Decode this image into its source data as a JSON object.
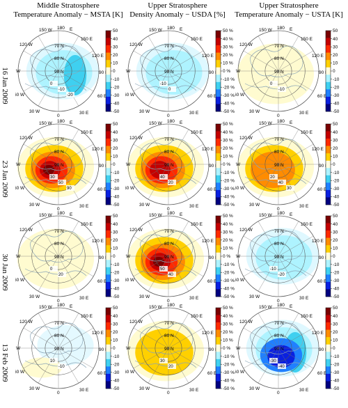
{
  "columns": [
    {
      "line1": "Middle Stratosphere",
      "line2": "Temperature Anomaly − MSTA [K]"
    },
    {
      "line1": "Upper Stratosphere",
      "line2": "Density Anomaly − USDA [%]"
    },
    {
      "line1": "Upper Stratosphere",
      "line2": "Temperature Anomaly − USTA [K]"
    }
  ],
  "rows": [
    "16 Jan 2009",
    "23 Jan 2009",
    "30 Jan 2009",
    "13 Feb 2009"
  ],
  "colorbar": {
    "kelvin_ticks": [
      "50",
      "40",
      "30",
      "20",
      "10",
      "0",
      "-10",
      "-20",
      "-30",
      "-40",
      "-50"
    ],
    "percent_ticks": [
      "50 %",
      "40 %",
      "30 %",
      "20 %",
      "10 %",
      "0 %",
      "-10 %",
      "-20 %",
      "-30 %",
      "-40 %",
      "-50 %"
    ],
    "colors": [
      "#7a0000",
      "#c40000",
      "#ff2a00",
      "#ff8c00",
      "#ffd000",
      "#fffbe0",
      "#aef3ff",
      "#3fd0f0",
      "#2080ff",
      "#0a20e0",
      "#000080"
    ]
  },
  "map": {
    "lat_labels": [
      "70 N",
      "80 N",
      "90 N"
    ],
    "lon_labels": [
      "150 W",
      "180",
      "E",
      "120 W",
      "150 E",
      "90 W",
      "120 E",
      "60 W",
      "90 E",
      "60 E",
      "30 W",
      "0",
      "30 E"
    ]
  },
  "panels": [
    [
      {
        "contours": [
          "0",
          "-10",
          "-20"
        ],
        "intensity": -0.3
      },
      {
        "contours": [
          "-10",
          "0"
        ],
        "intensity": -0.2
      },
      {
        "contours": [
          "0",
          "-10"
        ],
        "intensity": 0.1
      }
    ],
    [
      {
        "contours": [
          "30",
          "50",
          "90"
        ],
        "intensity": 1.0
      },
      {
        "contours": [
          "40",
          "20"
        ],
        "intensity": 0.9
      },
      {
        "contours": [
          "20",
          "40",
          "30"
        ],
        "intensity": 0.6
      }
    ],
    [
      {
        "contours": [
          "0",
          "20"
        ],
        "intensity": 0.15
      },
      {
        "contours": [
          "50",
          "40"
        ],
        "intensity": 1.0
      },
      {
        "contours": [
          "-10",
          "-20"
        ],
        "intensity": -0.1
      }
    ],
    [
      {
        "contours": [
          "10",
          "-10"
        ],
        "intensity": -0.05
      },
      {
        "contours": [
          "30",
          "20"
        ],
        "intensity": 0.4
      },
      {
        "contours": [
          "-30",
          "-40"
        ],
        "intensity": -0.9
      }
    ]
  ]
}
